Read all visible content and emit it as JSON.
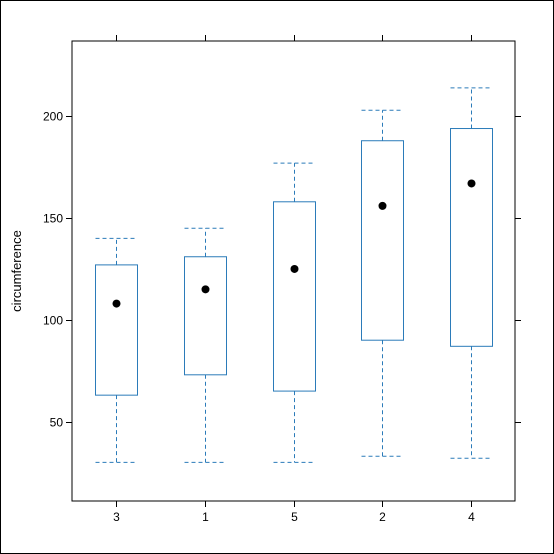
{
  "chart_data": {
    "type": "boxplot",
    "title": "",
    "xlabel": "",
    "ylabel": "circumference",
    "categories": [
      "3",
      "1",
      "5",
      "2",
      "4"
    ],
    "boxes": [
      {
        "category": "3",
        "whisker_low": 30,
        "q1": 63,
        "median": 108,
        "q3": 127,
        "whisker_high": 140
      },
      {
        "category": "1",
        "whisker_low": 30,
        "q1": 73,
        "median": 115,
        "q3": 131,
        "whisker_high": 145
      },
      {
        "category": "5",
        "whisker_low": 30,
        "q1": 65,
        "median": 125,
        "q3": 158,
        "whisker_high": 177
      },
      {
        "category": "2",
        "whisker_low": 33,
        "q1": 90,
        "median": 156,
        "q3": 188,
        "whisker_high": 203
      },
      {
        "category": "4",
        "whisker_low": 32,
        "q1": 87,
        "median": 167,
        "q3": 194,
        "whisker_high": 214
      }
    ],
    "y_ticks": [
      50,
      100,
      150,
      200
    ],
    "ylim": [
      11,
      237
    ],
    "grid": false,
    "colors": {
      "box": "#2b7bb9",
      "median_dot": "#000000",
      "axis": "#000000"
    }
  }
}
